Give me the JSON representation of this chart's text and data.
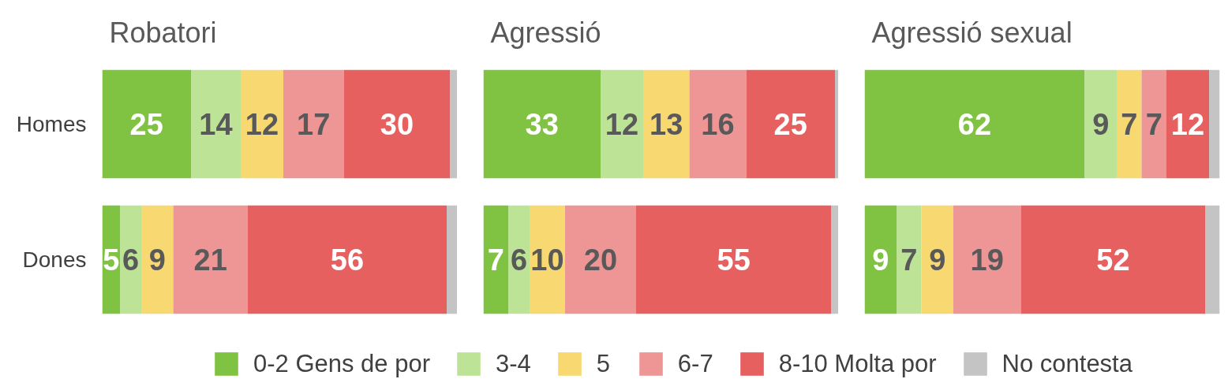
{
  "chart_data": [
    {
      "type": "bar",
      "orientation": "horizontal",
      "stacked": true,
      "title": "Robatori",
      "categories": [
        "Homes",
        "Dones"
      ],
      "xlim": [
        0,
        100
      ],
      "tick_labels": "y",
      "legend": "bottom",
      "series": [
        {
          "name": "0-2 Gens de por",
          "color": "#80c241",
          "values": [
            25,
            5
          ],
          "value_labels": [
            "25",
            "5"
          ]
        },
        {
          "name": "3-4",
          "color": "#bde496",
          "values": [
            14,
            6
          ],
          "value_labels": [
            "14",
            "6"
          ]
        },
        {
          "name": "5",
          "color": "#f8d870",
          "values": [
            12,
            9
          ],
          "value_labels": [
            "12",
            "9"
          ]
        },
        {
          "name": "6-7",
          "color": "#ee9595",
          "values": [
            17,
            21
          ],
          "value_labels": [
            "17",
            "21"
          ]
        },
        {
          "name": "8-10 Molta por",
          "color": "#e66060",
          "values": [
            30,
            56
          ],
          "value_labels": [
            "30",
            "56"
          ]
        },
        {
          "name": "No contesta",
          "color": "#c4c4c4",
          "values": [
            2,
            3
          ]
        }
      ]
    },
    {
      "type": "bar",
      "orientation": "horizontal",
      "stacked": true,
      "title": "Agressió",
      "categories": [
        "Homes",
        "Dones"
      ],
      "xlim": [
        0,
        100
      ],
      "tick_labels": false,
      "series": [
        {
          "color": "#80c241",
          "values": [
            33,
            7
          ],
          "value_labels": [
            "33",
            "7"
          ]
        },
        {
          "color": "#bde496",
          "values": [
            12,
            6
          ],
          "value_labels": [
            "12",
            "6"
          ]
        },
        {
          "color": "#f8d870",
          "values": [
            13,
            10
          ],
          "value_labels": [
            "13",
            "10"
          ]
        },
        {
          "color": "#ee9595",
          "values": [
            16,
            20
          ],
          "value_labels": [
            "16",
            "20"
          ]
        },
        {
          "color": "#e66060",
          "values": [
            25,
            55
          ],
          "value_labels": [
            "25",
            "55"
          ]
        },
        {
          "color": "#c4c4c4",
          "values": [
            1,
            2
          ]
        }
      ]
    },
    {
      "type": "bar",
      "orientation": "horizontal",
      "stacked": true,
      "title": "Agressió sexual",
      "categories": [
        "Homes",
        "Dones"
      ],
      "xlim": [
        0,
        100
      ],
      "tick_labels": false,
      "series": [
        {
          "color": "#80c241",
          "values": [
            62,
            9
          ],
          "value_labels": [
            "62",
            "9"
          ]
        },
        {
          "color": "#bde496",
          "values": [
            9,
            7
          ],
          "value_labels": [
            "9",
            "7"
          ]
        },
        {
          "color": "#f8d870",
          "values": [
            7,
            9
          ],
          "value_labels": [
            "7",
            "9"
          ]
        },
        {
          "color": "#ee9595",
          "values": [
            7,
            19
          ],
          "value_labels": [
            "7",
            "19"
          ]
        },
        {
          "color": "#e66060",
          "values": [
            12,
            52
          ],
          "value_labels": [
            "12",
            "52"
          ]
        },
        {
          "color": "#c4c4c4",
          "values": [
            3,
            4
          ]
        }
      ]
    }
  ]
}
